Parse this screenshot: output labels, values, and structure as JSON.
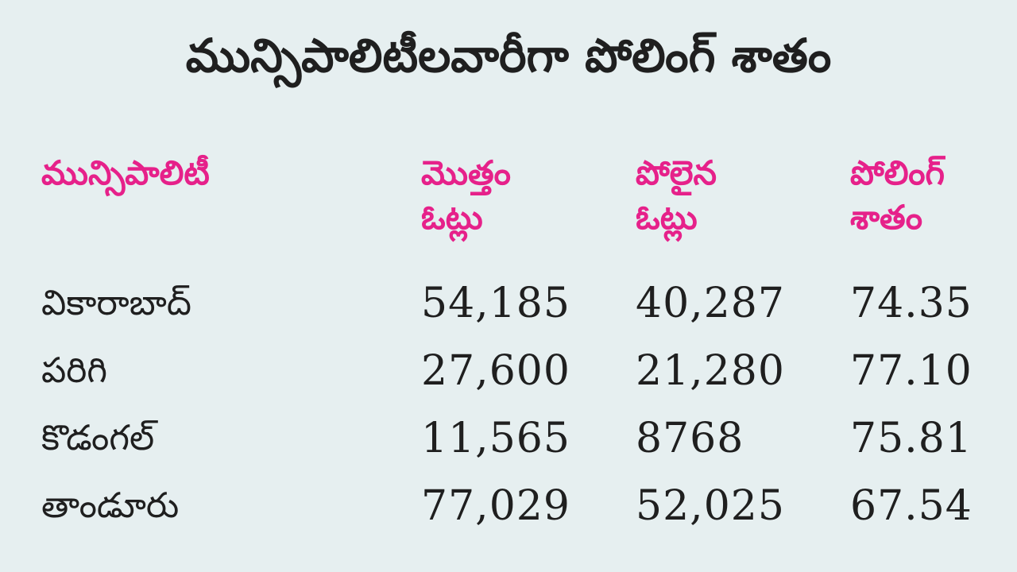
{
  "title": "మున్సిపాలిటీలవారీగా పోలింగ్ శాతం",
  "table": {
    "headers": [
      {
        "line1": "మున్సిపాలిటీ",
        "line2": ""
      },
      {
        "line1": "మొత్తం",
        "line2": "ఓట్లు"
      },
      {
        "line1": "పోలైన",
        "line2": "ఓట్లు"
      },
      {
        "line1": "పోలింగ్",
        "line2": "శాతం"
      }
    ],
    "rows": [
      {
        "municipality": "వికారాబాద్",
        "total_votes": "54,185",
        "polled_votes": "40,287",
        "polling_percent": "74.35"
      },
      {
        "municipality": "పరిగి",
        "total_votes": "27,600",
        "polled_votes": "21,280",
        "polling_percent": "77.10"
      },
      {
        "municipality": "కొడంగల్",
        "total_votes": "11,565",
        "polled_votes": "8768",
        "polling_percent": "75.81"
      },
      {
        "municipality": "తాండూరు",
        "total_votes": "77,029",
        "polled_votes": "52,025",
        "polling_percent": "67.54"
      }
    ]
  },
  "colors": {
    "background": "#e6eff0",
    "header_text": "#e6218a",
    "body_text": "#1f1f1f"
  }
}
